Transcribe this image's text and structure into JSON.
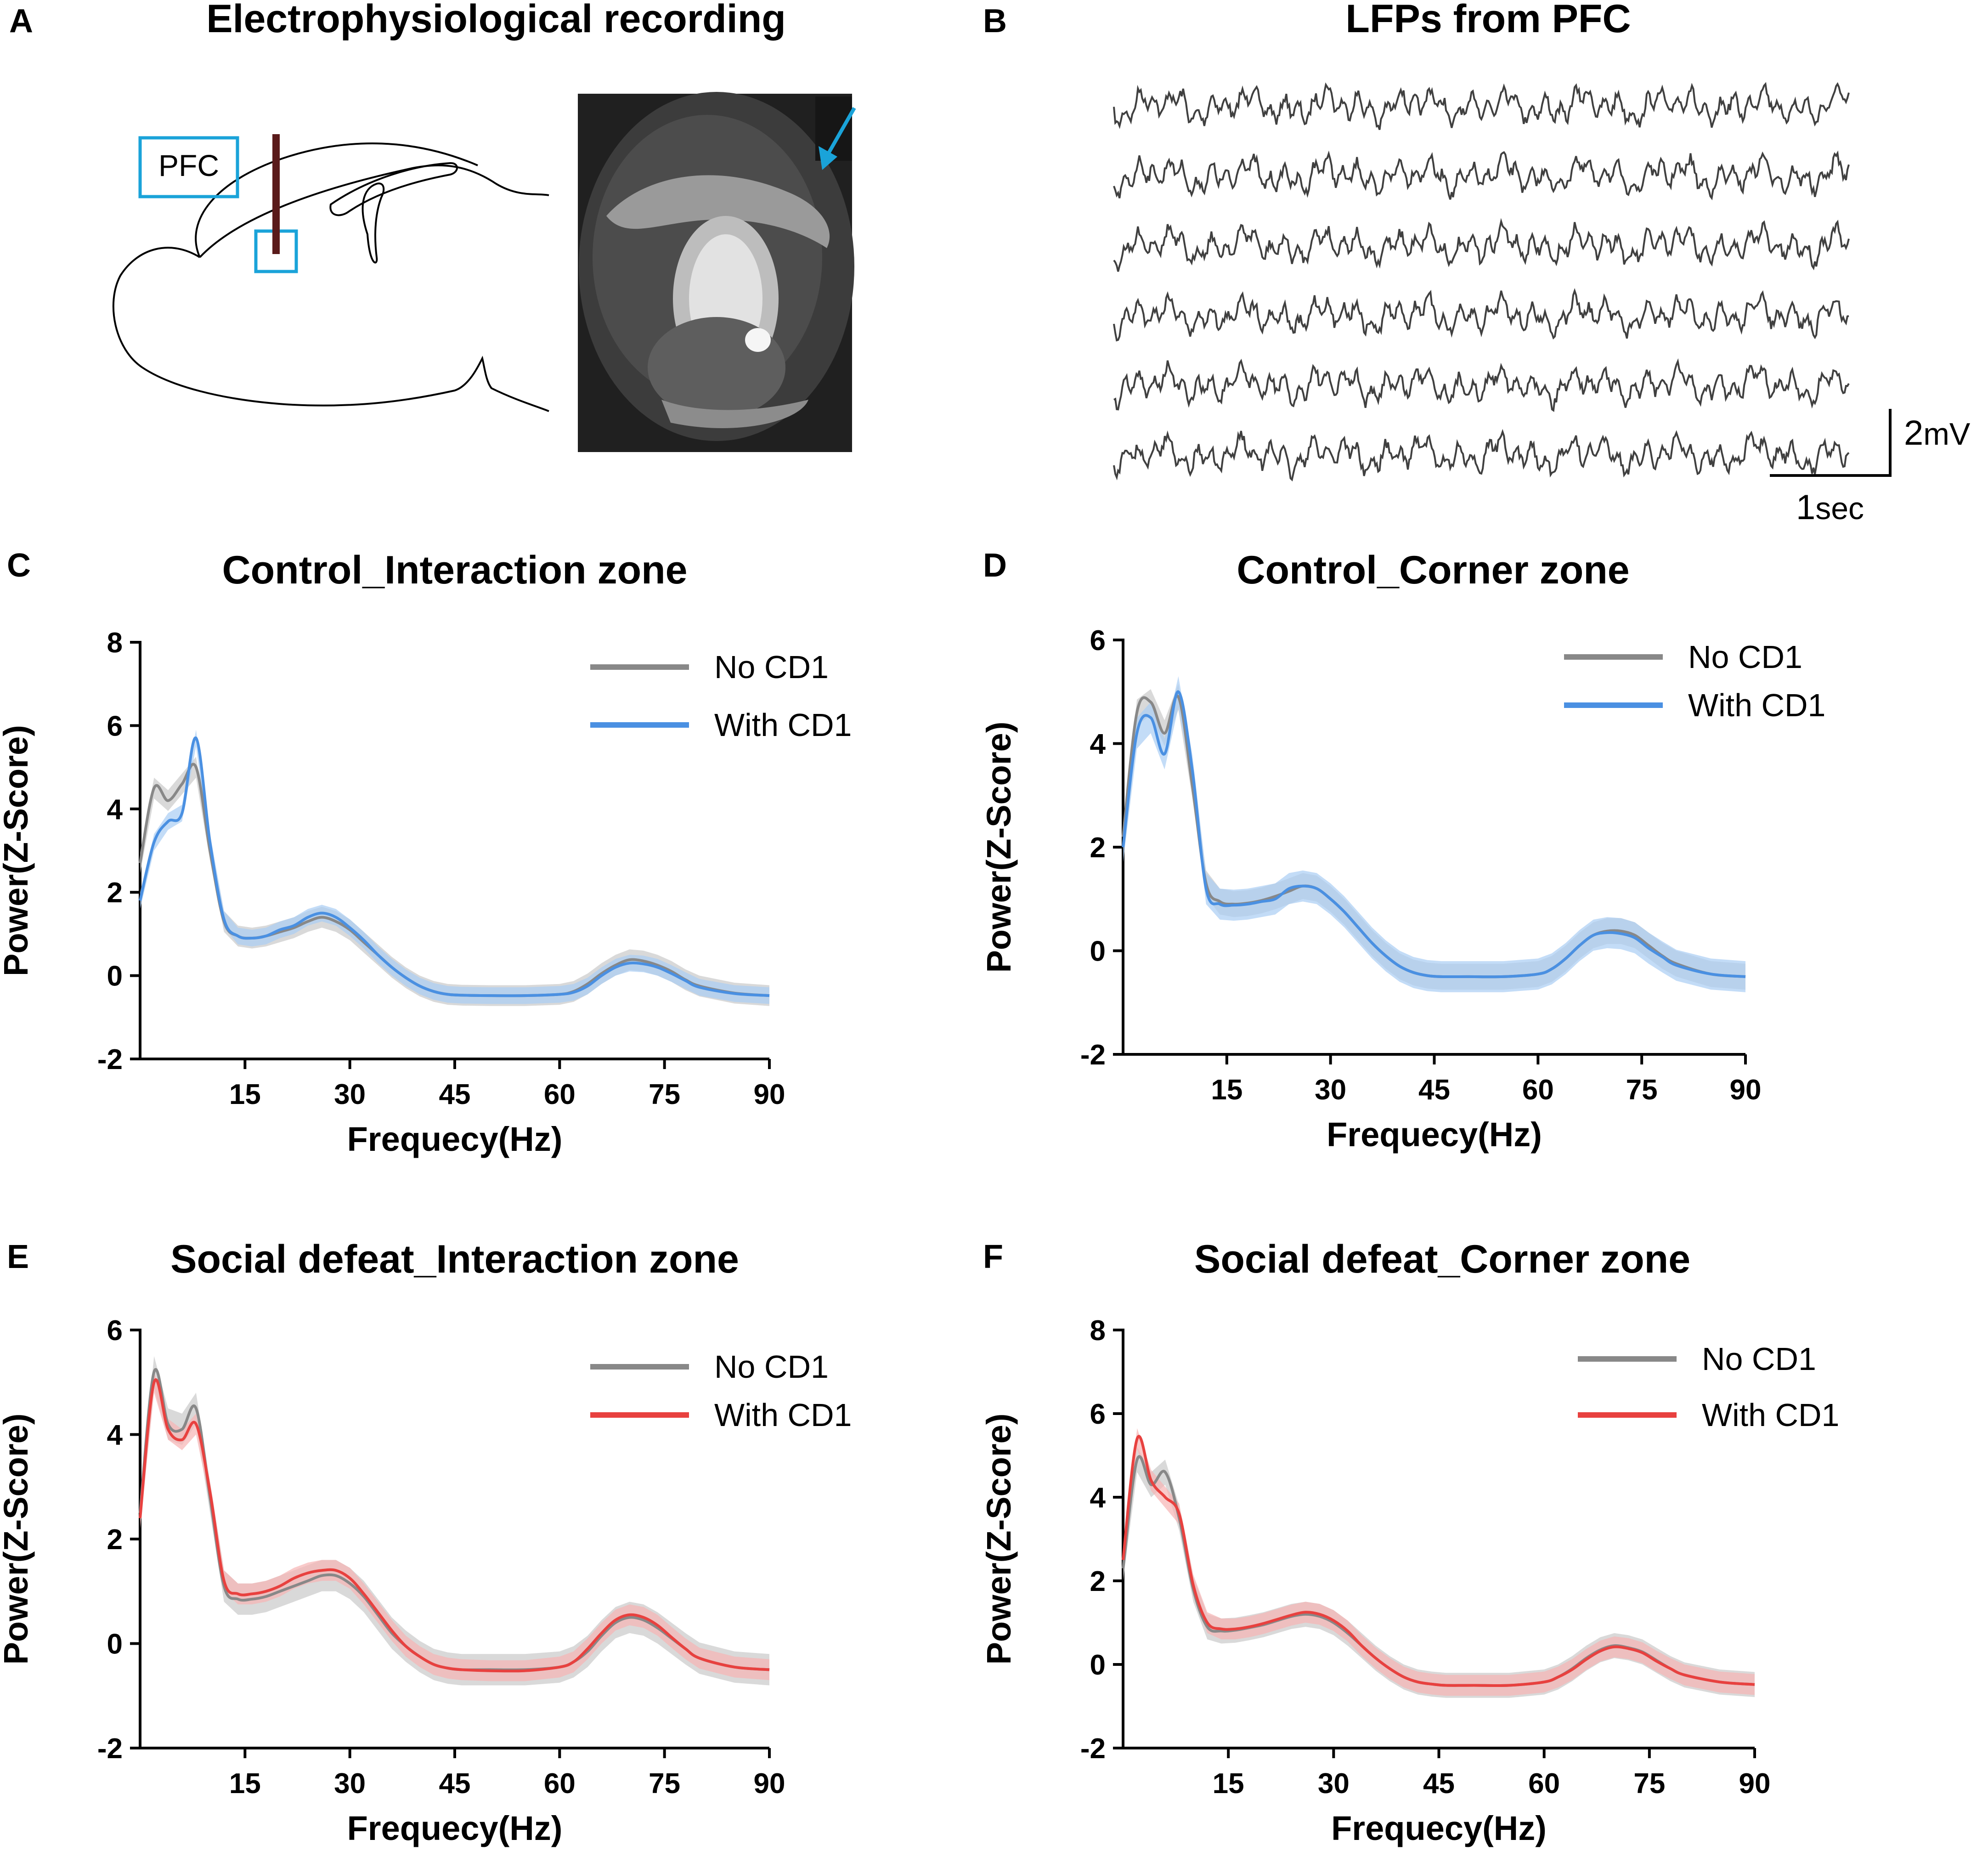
{
  "panel_a": {
    "letter": "A",
    "title": "Electrophysiological recording",
    "region_label": "PFC",
    "colors": {
      "box": "#1aa3d9",
      "electrode": "#5a1a1a",
      "arrow": "#1aa3d9"
    }
  },
  "panel_b": {
    "letter": "B",
    "title": "LFPs from PFC",
    "trace_count": 6,
    "scale_voltage_num": "2",
    "scale_voltage_unit": "mV",
    "scale_time_num": "1",
    "scale_time_unit": "sec",
    "colors": {
      "trace": "#404040"
    }
  },
  "colors": {
    "no_cd1": "#888888",
    "no_cd1_band": "#c9c9c9",
    "with_cd1_control": "#4a90e2",
    "with_cd1_control_band": "#a9cdf3",
    "with_cd1_defeat": "#e8413f",
    "with_cd1_defeat_band": "#f6b4b3"
  },
  "chart_data": [
    {
      "id": "C",
      "letter": "C",
      "type": "line",
      "title": "Control_Interaction zone",
      "xlabel": "Frequecy(Hz)",
      "ylabel": "Power(Z-Score)",
      "xlim": [
        0,
        90
      ],
      "ylim": [
        -2,
        8
      ],
      "xticks": [
        15,
        30,
        45,
        60,
        75,
        90
      ],
      "yticks": [
        -2,
        0,
        2,
        4,
        6,
        8
      ],
      "legend_position": "top-right",
      "x": [
        0,
        2,
        4,
        6,
        8,
        10,
        12,
        14,
        16,
        18,
        20,
        22,
        24,
        26,
        28,
        30,
        32,
        34,
        36,
        38,
        40,
        42,
        44,
        46,
        50,
        55,
        60,
        62,
        64,
        66,
        68,
        70,
        72,
        74,
        76,
        78,
        80,
        85,
        90
      ],
      "series": [
        {
          "name": "No CD1",
          "color_key": "no_cd1",
          "values": [
            2.7,
            4.5,
            4.2,
            4.6,
            5.0,
            3.0,
            1.3,
            0.95,
            0.9,
            0.95,
            1.05,
            1.15,
            1.3,
            1.4,
            1.3,
            1.1,
            0.8,
            0.5,
            0.2,
            -0.05,
            -0.25,
            -0.38,
            -0.45,
            -0.47,
            -0.48,
            -0.48,
            -0.45,
            -0.38,
            -0.2,
            0.05,
            0.25,
            0.38,
            0.35,
            0.25,
            0.1,
            -0.1,
            -0.25,
            -0.42,
            -0.48
          ],
          "band": 0.25
        },
        {
          "name": "With CD1",
          "color_key": "with_cd1_control",
          "values": [
            1.8,
            3.2,
            3.7,
            3.9,
            5.7,
            3.2,
            1.35,
            0.95,
            0.9,
            0.95,
            1.1,
            1.2,
            1.4,
            1.5,
            1.4,
            1.15,
            0.85,
            0.5,
            0.2,
            -0.05,
            -0.25,
            -0.38,
            -0.45,
            -0.47,
            -0.48,
            -0.48,
            -0.45,
            -0.4,
            -0.25,
            0.0,
            0.2,
            0.3,
            0.28,
            0.2,
            0.05,
            -0.12,
            -0.28,
            -0.43,
            -0.48
          ],
          "band": 0.2
        }
      ]
    },
    {
      "id": "D",
      "letter": "D",
      "type": "line",
      "title": "Control_Corner zone",
      "xlabel": "Frequecy(Hz)",
      "ylabel": "Power(Z-Score)",
      "xlim": [
        0,
        90
      ],
      "ylim": [
        -2,
        6
      ],
      "xticks": [
        15,
        30,
        45,
        60,
        75,
        90
      ],
      "yticks": [
        -2,
        0,
        2,
        4,
        6
      ],
      "legend_position": "top-right",
      "x": [
        0,
        2,
        4,
        6,
        8,
        10,
        12,
        14,
        16,
        18,
        20,
        22,
        24,
        26,
        28,
        30,
        32,
        34,
        36,
        38,
        40,
        42,
        44,
        46,
        50,
        55,
        60,
        62,
        64,
        66,
        68,
        70,
        72,
        74,
        76,
        78,
        80,
        85,
        90
      ],
      "series": [
        {
          "name": "No CD1",
          "color_key": "no_cd1",
          "values": [
            2.2,
            4.6,
            4.8,
            4.2,
            4.9,
            3.2,
            1.3,
            0.95,
            0.9,
            0.92,
            0.97,
            1.05,
            1.15,
            1.25,
            1.2,
            1.0,
            0.75,
            0.45,
            0.15,
            -0.1,
            -0.3,
            -0.42,
            -0.48,
            -0.5,
            -0.5,
            -0.5,
            -0.45,
            -0.35,
            -0.15,
            0.1,
            0.3,
            0.38,
            0.38,
            0.3,
            0.1,
            -0.1,
            -0.25,
            -0.45,
            -0.5
          ],
          "band": 0.25
        },
        {
          "name": "With CD1",
          "color_key": "with_cd1_control",
          "values": [
            2.0,
            4.2,
            4.5,
            3.8,
            5.0,
            3.5,
            1.2,
            0.9,
            0.88,
            0.9,
            0.95,
            1.0,
            1.2,
            1.25,
            1.2,
            1.0,
            0.75,
            0.45,
            0.15,
            -0.1,
            -0.3,
            -0.42,
            -0.48,
            -0.5,
            -0.5,
            -0.5,
            -0.45,
            -0.35,
            -0.15,
            0.1,
            0.3,
            0.35,
            0.33,
            0.25,
            0.05,
            -0.12,
            -0.28,
            -0.45,
            -0.5
          ],
          "band": 0.3
        }
      ]
    },
    {
      "id": "E",
      "letter": "E",
      "type": "line",
      "title": "Social defeat_Interaction zone",
      "xlabel": "Frequecy(Hz)",
      "ylabel": "Power(Z-Score)",
      "xlim": [
        0,
        90
      ],
      "ylim": [
        -2,
        6
      ],
      "xticks": [
        15,
        30,
        45,
        60,
        75,
        90
      ],
      "yticks": [
        -2,
        0,
        2,
        4,
        6
      ],
      "legend_position": "top-right",
      "x": [
        0,
        2,
        4,
        6,
        8,
        10,
        12,
        14,
        16,
        18,
        20,
        22,
        24,
        26,
        28,
        30,
        32,
        34,
        36,
        38,
        40,
        42,
        44,
        46,
        50,
        55,
        60,
        62,
        64,
        66,
        68,
        70,
        72,
        74,
        76,
        78,
        80,
        85,
        90
      ],
      "series": [
        {
          "name": "No CD1",
          "color_key": "no_cd1",
          "values": [
            2.5,
            5.2,
            4.2,
            4.1,
            4.5,
            2.8,
            1.1,
            0.85,
            0.85,
            0.9,
            1.0,
            1.1,
            1.2,
            1.3,
            1.3,
            1.15,
            0.9,
            0.55,
            0.2,
            -0.05,
            -0.25,
            -0.4,
            -0.47,
            -0.5,
            -0.5,
            -0.5,
            -0.45,
            -0.35,
            -0.15,
            0.15,
            0.4,
            0.5,
            0.45,
            0.3,
            0.1,
            -0.1,
            -0.28,
            -0.45,
            -0.5
          ],
          "band": 0.3
        },
        {
          "name": "With CD1",
          "color_key": "with_cd1_defeat",
          "values": [
            2.4,
            5.0,
            4.1,
            3.9,
            4.2,
            2.9,
            1.2,
            0.95,
            0.95,
            1.0,
            1.1,
            1.25,
            1.35,
            1.4,
            1.4,
            1.25,
            0.95,
            0.6,
            0.25,
            -0.05,
            -0.25,
            -0.4,
            -0.47,
            -0.5,
            -0.52,
            -0.52,
            -0.45,
            -0.35,
            -0.1,
            0.2,
            0.45,
            0.55,
            0.5,
            0.35,
            0.12,
            -0.1,
            -0.28,
            -0.45,
            -0.5
          ],
          "band": 0.2
        }
      ]
    },
    {
      "id": "F",
      "letter": "F",
      "type": "line",
      "title": "Social defeat_Corner zone",
      "xlabel": "Frequecy(Hz)",
      "ylabel": "Power(Z-Score)",
      "xlim": [
        0,
        90
      ],
      "ylim": [
        -2,
        8
      ],
      "xticks": [
        15,
        30,
        45,
        60,
        75,
        90
      ],
      "yticks": [
        -2,
        0,
        2,
        4,
        6,
        8
      ],
      "legend_position": "top-right",
      "x": [
        0,
        2,
        4,
        6,
        8,
        10,
        12,
        14,
        16,
        18,
        20,
        22,
        24,
        26,
        28,
        30,
        32,
        34,
        36,
        38,
        40,
        42,
        44,
        46,
        50,
        55,
        60,
        62,
        64,
        66,
        68,
        70,
        72,
        74,
        76,
        78,
        80,
        85,
        90
      ],
      "series": [
        {
          "name": "No CD1",
          "color_key": "no_cd1",
          "values": [
            2.3,
            4.9,
            4.3,
            4.6,
            3.5,
            1.8,
            0.9,
            0.8,
            0.82,
            0.88,
            0.95,
            1.05,
            1.15,
            1.2,
            1.15,
            1.0,
            0.75,
            0.45,
            0.15,
            -0.1,
            -0.3,
            -0.42,
            -0.47,
            -0.5,
            -0.5,
            -0.5,
            -0.42,
            -0.3,
            -0.1,
            0.15,
            0.35,
            0.45,
            0.4,
            0.3,
            0.1,
            -0.1,
            -0.25,
            -0.42,
            -0.48
          ],
          "band": 0.3
        },
        {
          "name": "With CD1",
          "color_key": "with_cd1_defeat",
          "values": [
            2.5,
            5.4,
            4.4,
            4.0,
            3.6,
            1.9,
            1.0,
            0.85,
            0.85,
            0.9,
            0.98,
            1.08,
            1.18,
            1.25,
            1.2,
            1.05,
            0.8,
            0.45,
            0.15,
            -0.1,
            -0.3,
            -0.42,
            -0.47,
            -0.5,
            -0.5,
            -0.5,
            -0.42,
            -0.3,
            -0.12,
            0.12,
            0.32,
            0.42,
            0.38,
            0.28,
            0.08,
            -0.1,
            -0.25,
            -0.42,
            -0.48
          ],
          "band": 0.25
        }
      ]
    }
  ]
}
